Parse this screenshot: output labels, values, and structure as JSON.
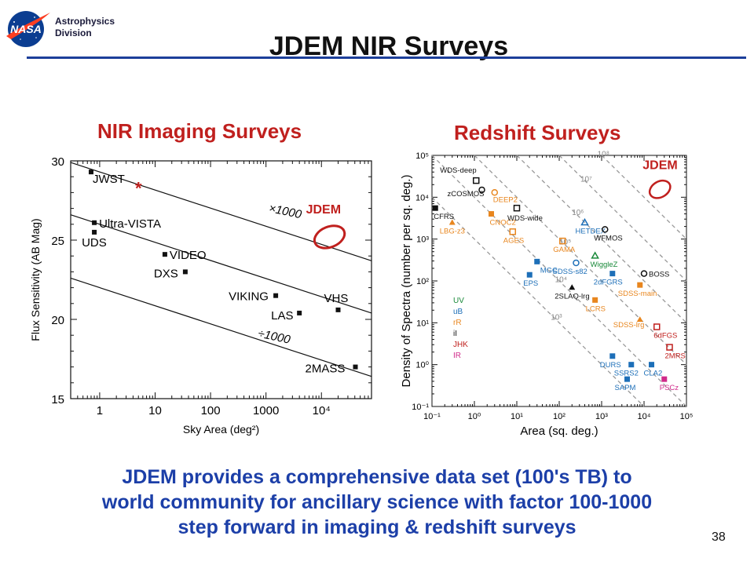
{
  "header": {
    "division": "Astrophysics Division",
    "title": "JDEM NIR Surveys",
    "logo_text": "NASA"
  },
  "charts_titles": {
    "left": "NIR Imaging Surveys",
    "right": "Redshift Surveys"
  },
  "chart_data": [
    {
      "type": "scatter",
      "title": "",
      "xlabel": "Sky Area (deg²)",
      "ylabel": "Flux Sensitivity (AB Mag)",
      "xscale": "log",
      "xlim": [
        0.3,
        80000
      ],
      "ylim": [
        15,
        30
      ],
      "x_ticks": [
        {
          "value": 1,
          "label": "1"
        },
        {
          "value": 10,
          "label": "10"
        },
        {
          "value": 100,
          "label": "100"
        },
        {
          "value": 1000,
          "label": "1000"
        },
        {
          "value": 10000,
          "label": "10⁴"
        }
      ],
      "y_ticks": [
        15,
        20,
        25,
        30
      ],
      "grid": false,
      "points": [
        {
          "label": "JWST",
          "x": 0.7,
          "y": 29.3
        },
        {
          "label": "Ultra-VISTA",
          "x": 0.8,
          "y": 26.1
        },
        {
          "label": "UDS",
          "x": 0.8,
          "y": 25.5
        },
        {
          "label": "VIDEO",
          "x": 15,
          "y": 24.1
        },
        {
          "label": "DXS",
          "x": 35,
          "y": 23.0
        },
        {
          "label": "VIKING",
          "x": 1500,
          "y": 21.5
        },
        {
          "label": "LAS",
          "x": 4000,
          "y": 20.4
        },
        {
          "label": "VHS",
          "x": 20000,
          "y": 20.6
        },
        {
          "label": "2MASS",
          "x": 41000,
          "y": 17.0
        }
      ],
      "lines": [
        {
          "label": "×1000",
          "points": [
            [
              0.3,
              29.9
            ],
            [
              80000,
              23.7
            ]
          ]
        },
        {
          "label": "",
          "points": [
            [
              0.3,
              26.6
            ],
            [
              80000,
              20.4
            ]
          ]
        },
        {
          "label": "÷1000",
          "points": [
            [
              0.3,
              22.6
            ],
            [
              80000,
              16.4
            ]
          ]
        }
      ],
      "annotations": [
        {
          "text": "*",
          "x": 5,
          "y": 28.3,
          "color": "#c0201e"
        },
        {
          "text": "JDEM",
          "x": 14000,
          "y": 25.2,
          "color": "#c0201e"
        }
      ]
    },
    {
      "type": "scatter",
      "title": "",
      "xlabel": "Area (sq. deg.)",
      "ylabel": "Density of Spectra (number per sq. deg.)",
      "xscale": "log",
      "yscale": "log",
      "xlim": [
        0.1,
        100000
      ],
      "ylim": [
        0.1,
        100000
      ],
      "x_ticks": [
        "10⁻¹",
        "10⁰",
        "10¹",
        "10²",
        "10³",
        "10⁴",
        "10⁵"
      ],
      "y_ticks": [
        "10⁻¹",
        "10⁰",
        "10¹",
        "10²",
        "10³",
        "10⁴",
        "10⁵"
      ],
      "grid": false,
      "iso_lines": [
        "10³",
        "10⁴",
        "10⁵",
        "10⁶",
        "10⁷",
        "10⁸"
      ],
      "legend": [
        "UV",
        "uB",
        "rR",
        "iI",
        "JHK",
        "IR"
      ],
      "legend_colors": [
        "#1a8a3a",
        "#1d6fb8",
        "#e8861e",
        "#111111",
        "#c0201e",
        "#d02a8a"
      ],
      "points": [
        {
          "label": "WDS-deep",
          "x": 1.1,
          "y": 25000,
          "marker": "open-square",
          "color": "#111111"
        },
        {
          "label": "zCOSMOS",
          "x": 1.5,
          "y": 15000,
          "marker": "open-circle",
          "color": "#111111"
        },
        {
          "label": "CFRS",
          "x": 0.12,
          "y": 5500,
          "marker": "square",
          "color": "#111111"
        },
        {
          "label": "DEEP2",
          "x": 3,
          "y": 13000,
          "marker": "open-circle",
          "color": "#e8861e"
        },
        {
          "label": "CNOC2",
          "x": 2.5,
          "y": 4000,
          "marker": "square",
          "color": "#e8861e"
        },
        {
          "label": "LBG-z3",
          "x": 0.3,
          "y": 2500,
          "marker": "triangle",
          "color": "#e8861e"
        },
        {
          "label": "WDS-wide",
          "x": 10,
          "y": 5500,
          "marker": "open-square",
          "color": "#111111"
        },
        {
          "label": "AGES",
          "x": 8,
          "y": 1500,
          "marker": "open-square",
          "color": "#e8861e"
        },
        {
          "label": "GAMA",
          "x": 120,
          "y": 900,
          "marker": "open-square",
          "color": "#e8861e"
        },
        {
          "label": "HETDEX",
          "x": 400,
          "y": 2500,
          "marker": "open-triangle",
          "color": "#1d6fb8"
        },
        {
          "label": "WFMOS",
          "x": 1200,
          "y": 1700,
          "marker": "open-circle",
          "color": "#111111"
        },
        {
          "label": "MGC",
          "x": 30,
          "y": 290,
          "marker": "square",
          "color": "#1d6fb8"
        },
        {
          "label": "EPS",
          "x": 20,
          "y": 140,
          "marker": "square",
          "color": "#1d6fb8"
        },
        {
          "label": "SDSS-s82",
          "x": 250,
          "y": 270,
          "marker": "open-circle",
          "color": "#1d6fb8"
        },
        {
          "label": "WiggleZ",
          "x": 700,
          "y": 400,
          "marker": "open-triangle",
          "color": "#1a8a3a"
        },
        {
          "label": "2dFGRS",
          "x": 1800,
          "y": 150,
          "marker": "square",
          "color": "#1d6fb8"
        },
        {
          "label": "BOSS",
          "x": 10000,
          "y": 150,
          "marker": "open-circle",
          "color": "#111111"
        },
        {
          "label": "2SLAQ-lrg",
          "x": 200,
          "y": 70,
          "marker": "triangle",
          "color": "#111111"
        },
        {
          "label": "SDSS-main",
          "x": 8000,
          "y": 80,
          "marker": "square",
          "color": "#e8861e"
        },
        {
          "label": "LCRS",
          "x": 700,
          "y": 35,
          "marker": "square",
          "color": "#e8861e"
        },
        {
          "label": "SDSS-lrg",
          "x": 8000,
          "y": 12,
          "marker": "triangle",
          "color": "#e8861e"
        },
        {
          "label": "6dFGS",
          "x": 20000,
          "y": 8,
          "marker": "open-square",
          "color": "#c0201e"
        },
        {
          "label": "2MRS",
          "x": 40000,
          "y": 2.6,
          "marker": "open-square",
          "color": "#c0201e"
        },
        {
          "label": "DURS",
          "x": 1800,
          "y": 1.6,
          "marker": "square",
          "color": "#1d6fb8"
        },
        {
          "label": "SSRS2",
          "x": 5000,
          "y": 1.0,
          "marker": "square",
          "color": "#1d6fb8"
        },
        {
          "label": "CLA2",
          "x": 15000,
          "y": 1.0,
          "marker": "square",
          "color": "#1d6fb8"
        },
        {
          "label": "SAPM",
          "x": 4000,
          "y": 0.45,
          "marker": "square",
          "color": "#1d6fb8"
        },
        {
          "label": "PSCz",
          "x": 30000,
          "y": 0.45,
          "marker": "square",
          "color": "#d02a8a"
        }
      ],
      "annotations": [
        {
          "text": "JDEM",
          "x": 20000,
          "y": 20000,
          "color": "#c0201e"
        }
      ]
    }
  ],
  "footer": {
    "summary_lines": [
      "JDEM provides a comprehensive data set (100's TB) to",
      "world community for ancillary science with factor 100-1000",
      "step forward in imaging & redshift surveys"
    ],
    "page_number": "38"
  },
  "colors": {
    "title_rule": "#1c3f9a",
    "subtitle": "#c0201e",
    "summary_text": "#1c3fa8"
  }
}
